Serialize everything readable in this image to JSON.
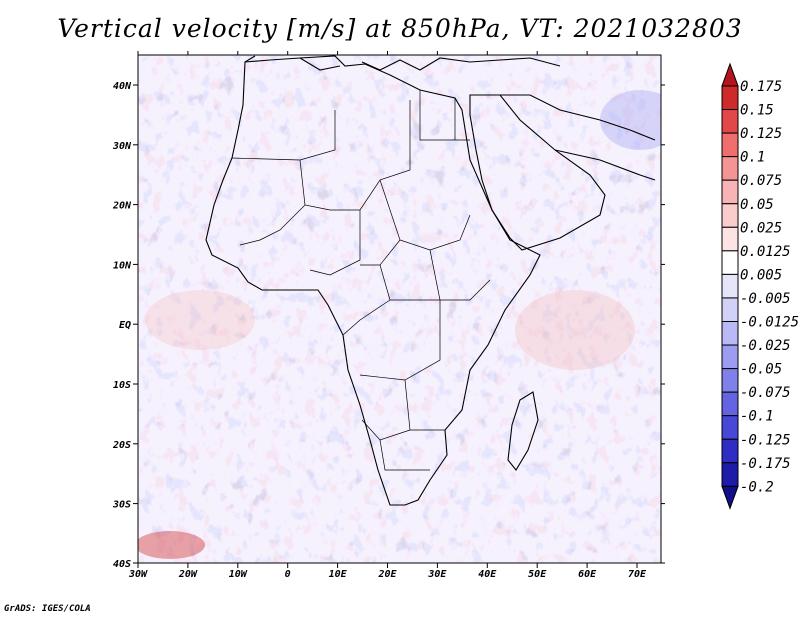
{
  "title": "Vertical velocity [m/s] at 850hPa, VT: 2021032803",
  "credit": "GrADS: IGES/COLA",
  "map": {
    "lon_labels": [
      "30W",
      "20W",
      "10W",
      "0",
      "10E",
      "20E",
      "30E",
      "40E",
      "50E",
      "60E",
      "70E"
    ],
    "lat_labels": [
      "40N",
      "30N",
      "20N",
      "10N",
      "EQ",
      "10S",
      "20S",
      "30S",
      "40S"
    ],
    "lon_range": [
      -30,
      75
    ],
    "lat_range": [
      -40,
      45
    ]
  },
  "colorbar": {
    "labels": [
      "0.175",
      "0.15",
      "0.125",
      "0.1",
      "0.075",
      "0.05",
      "0.025",
      "0.0125",
      "0.005",
      "-0.005",
      "-0.0125",
      "-0.025",
      "-0.05",
      "-0.075",
      "-0.1",
      "-0.125",
      "-0.175",
      "-0.2"
    ],
    "colors": [
      "#b4141e",
      "#cf2a2a",
      "#e34848",
      "#ef6e6e",
      "#f59494",
      "#f8b4b4",
      "#fbcccc",
      "#fde4e4",
      "#ffffff",
      "#e6e6fa",
      "#d2d2f8",
      "#b9b9f5",
      "#9c9cf0",
      "#8080ea",
      "#6464e2",
      "#4848d6",
      "#2e2ec4",
      "#1c1ca8",
      "#120e8c"
    ]
  }
}
